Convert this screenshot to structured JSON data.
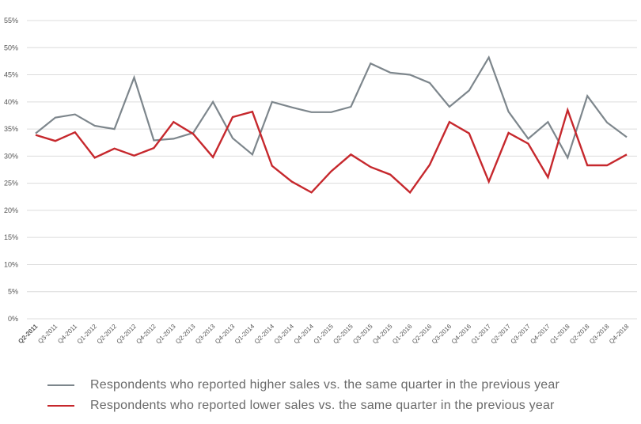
{
  "chart_data": {
    "type": "line",
    "x": [
      "Q2-2011",
      "Q3-2011",
      "Q4-2011",
      "Q1-2012",
      "Q2-2012",
      "Q3-2012",
      "Q4-2012",
      "Q1-2013",
      "Q2-2013",
      "Q3-2013",
      "Q4-2013",
      "Q1-2014",
      "Q2-2014",
      "Q3-2014",
      "Q4-2014",
      "Q1-2015",
      "Q2-2015",
      "Q3-2015",
      "Q4-2015",
      "Q1-2016",
      "Q2-2016",
      "Q3-2016",
      "Q4-2016",
      "Q1-2017",
      "Q2-2017",
      "Q3-2017",
      "Q4-2017",
      "Q1-2018",
      "Q2-2018",
      "Q3-2018",
      "Q4-2018"
    ],
    "yticks": [
      "0%",
      "5%",
      "10%",
      "15%",
      "20%",
      "25%",
      "30%",
      "35%",
      "40%",
      "45%",
      "50%",
      "55%"
    ],
    "ylim": [
      0,
      55
    ],
    "grid": true,
    "legend_position": "bottom",
    "series": [
      {
        "name": "Respondents who reported higher sales vs. the same quarter in the previous year",
        "color": "#7d868c",
        "values": [
          34.2,
          37.1,
          37.7,
          35.6,
          35.0,
          44.5,
          32.9,
          33.2,
          34.3,
          40.0,
          33.3,
          30.3,
          40.0,
          39.0,
          38.1,
          38.1,
          39.1,
          47.1,
          45.4,
          45.0,
          43.5,
          39.1,
          42.1,
          48.2,
          38.2,
          33.2,
          36.3,
          29.7,
          41.1,
          36.2,
          33.5
        ]
      },
      {
        "name": "Respondents who reported lower sales vs. the same quarter in the previous year",
        "color": "#c6282d",
        "values": [
          33.9,
          32.8,
          34.4,
          29.7,
          31.4,
          30.1,
          31.5,
          36.3,
          34.1,
          29.8,
          37.2,
          38.2,
          28.2,
          25.3,
          23.3,
          27.2,
          30.3,
          28.0,
          26.6,
          23.3,
          28.4,
          36.3,
          34.2,
          25.3,
          34.3,
          32.3,
          26.1,
          38.5,
          28.3,
          28.3,
          30.3
        ]
      }
    ]
  }
}
